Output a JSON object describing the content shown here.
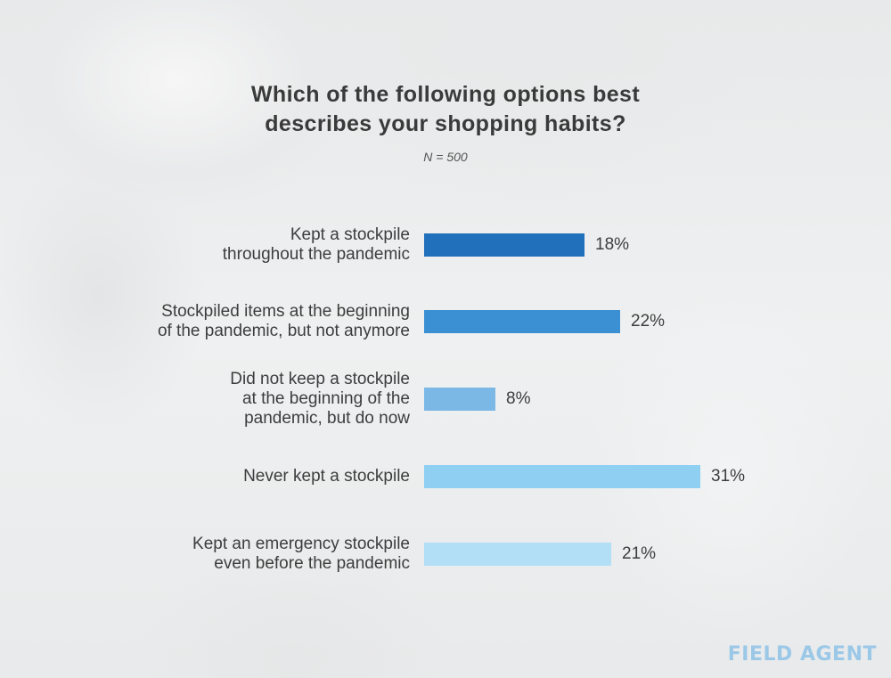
{
  "logo": {
    "text": "FIELD AGENT"
  },
  "chart_data": {
    "type": "bar",
    "orientation": "horizontal",
    "title": "Which of the following options best\ndescribes your shopping habits?",
    "subtitle": "N = 500",
    "xlim": [
      0,
      31
    ],
    "categories": [
      "Kept a stockpile\nthroughout the pandemic",
      "Stockpiled items at the beginning\nof the pandemic, but not anymore",
      "Did not keep a stockpile\nat the beginning of the\npandemic, but do now",
      "Never kept a stockpile",
      "Kept an emergency stockpile\neven before the pandemic"
    ],
    "values": [
      18,
      22,
      8,
      31,
      21
    ],
    "value_labels": [
      "18%",
      "22%",
      "8%",
      "31%",
      "21%"
    ],
    "colors": [
      "#2070bc",
      "#3b8fd3",
      "#7bb8e6",
      "#8fd0f2",
      "#b2def6"
    ]
  }
}
